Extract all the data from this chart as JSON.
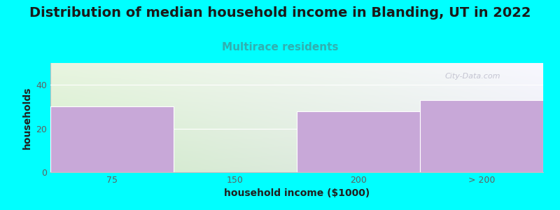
{
  "title": "Distribution of median household income in Blanding, UT in 2022",
  "subtitle": "Multirace residents",
  "xlabel": "household income ($1000)",
  "ylabel": "households",
  "categories": [
    "75",
    "150",
    "200",
    "> 200"
  ],
  "values": [
    30,
    0,
    28,
    33
  ],
  "bar_color": "#c8a8d8",
  "bar_edge_color": "#c8a8d8",
  "background_color": "#00FFFF",
  "grad_color_topleft": "#e8f5e0",
  "grad_color_topright": "#f5f5f8",
  "grad_color_bottomleft": "#d0ecc8",
  "grad_color_bottomright": "#e8e8f0",
  "ylim": [
    0,
    50
  ],
  "yticks": [
    0,
    20,
    40
  ],
  "title_fontsize": 14,
  "subtitle_fontsize": 11,
  "subtitle_color": "#30b0b0",
  "axis_label_fontsize": 10,
  "tick_fontsize": 9,
  "tick_color": "#606060",
  "watermark": "City-Data.com"
}
